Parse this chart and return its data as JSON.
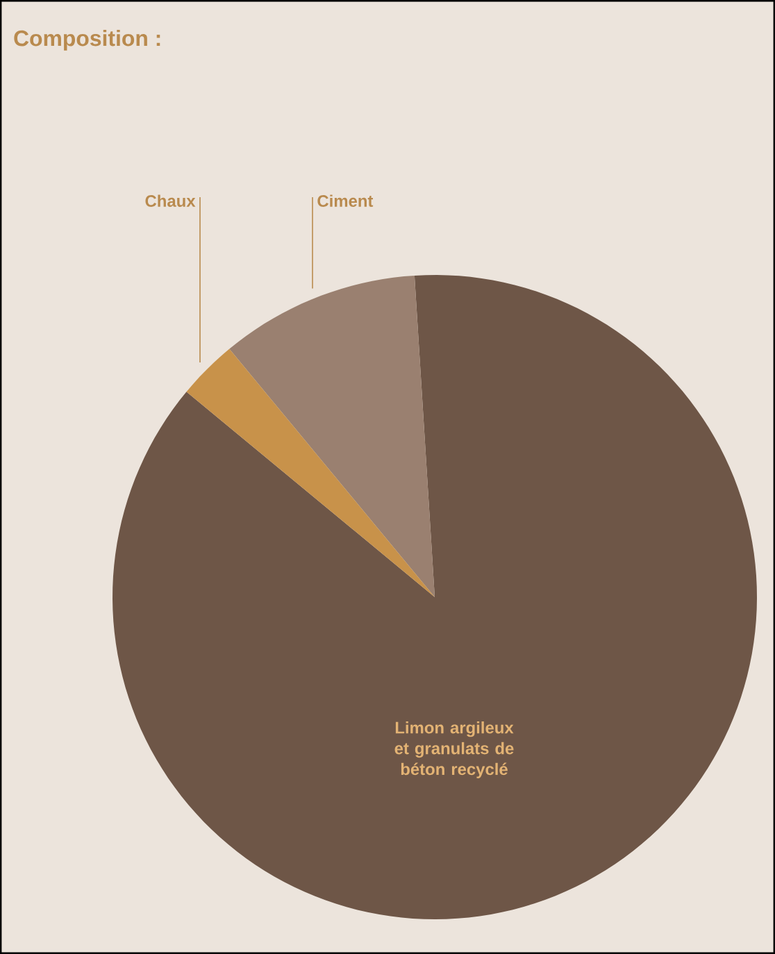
{
  "chart_data": {
    "type": "pie",
    "title": "Composition :",
    "categories": [
      "Limon argileux et granulats de béton recyclé",
      "Ciment",
      "Chaux"
    ],
    "values": [
      87,
      10,
      3
    ],
    "colors": [
      "#6e5647",
      "#9a8070",
      "#c8924a"
    ]
  }
}
